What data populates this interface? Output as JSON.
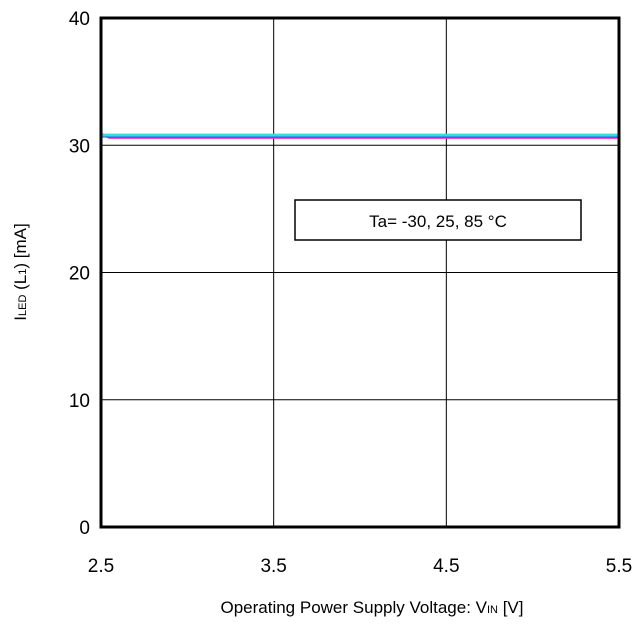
{
  "chart_data": {
    "type": "line",
    "xlabel": {
      "main": "Operating Power Supply Voltage: V",
      "sub": "IN",
      "unit": " [V]"
    },
    "ylabel": {
      "main": "I",
      "sub": "LED",
      "mid": " (L",
      "sub2": "1",
      "unit": ") [mA]"
    },
    "xlim": [
      2.5,
      5.5
    ],
    "ylim": [
      0,
      40
    ],
    "x_ticks": [
      2.5,
      3.5,
      4.5,
      5.5
    ],
    "x_tick_labels": [
      "2.5",
      "3.5",
      "4.5",
      "5.5"
    ],
    "y_ticks": [
      0,
      10,
      20,
      30,
      40
    ],
    "y_tick_labels": [
      "0",
      "10",
      "20",
      "30",
      "40"
    ],
    "grid": true,
    "annotation": "Ta= -30, 25, 85 °C",
    "series": [
      {
        "color": "#ff33cc",
        "x": [
          2.5,
          2.55,
          5.5
        ],
        "y": [
          30.9,
          30.6,
          30.6
        ]
      },
      {
        "color": "#3333ff",
        "x": [
          2.5,
          2.55,
          5.5
        ],
        "y": [
          30.7,
          30.7,
          30.7
        ]
      },
      {
        "color": "#33dddd",
        "x": [
          2.5,
          2.55,
          5.5
        ],
        "y": [
          30.8,
          30.8,
          30.8
        ]
      }
    ]
  }
}
